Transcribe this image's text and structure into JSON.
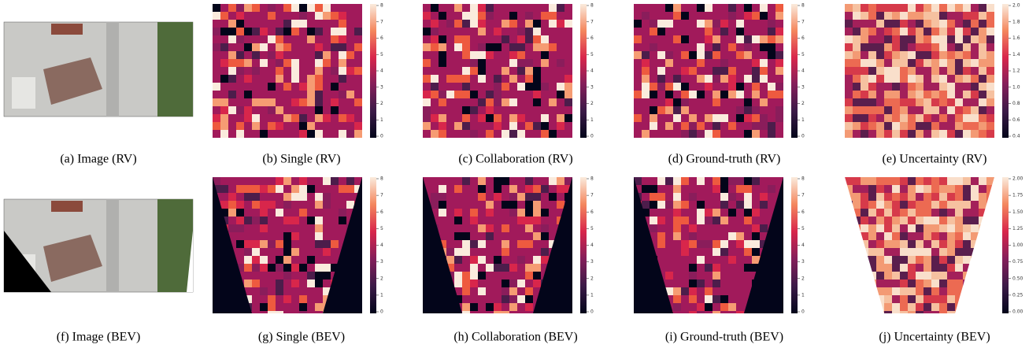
{
  "panels": [
    {
      "caption": "(a) Image (RV)"
    },
    {
      "caption": "(b) Single (RV)",
      "colorbar_ticks": [
        "0",
        "1",
        "2",
        "3",
        "4",
        "5",
        "6",
        "7",
        "8"
      ]
    },
    {
      "caption": "(c) Collaboration (RV)",
      "colorbar_ticks": [
        "0",
        "1",
        "2",
        "3",
        "4",
        "5",
        "6",
        "7",
        "8"
      ]
    },
    {
      "caption": "(d) Ground-truth (RV)",
      "colorbar_ticks": [
        "0",
        "1",
        "2",
        "3",
        "4",
        "5",
        "6",
        "7",
        "8"
      ]
    },
    {
      "caption": "(e) Uncertainty (RV)",
      "colorbar_ticks": [
        "0.4",
        "0.6",
        "0.8",
        "1.0",
        "1.2",
        "1.4",
        "1.6",
        "1.8",
        "2.0"
      ]
    },
    {
      "caption": "(f) Image (BEV)"
    },
    {
      "caption": "(g) Single (BEV)",
      "colorbar_ticks": [
        "0",
        "1",
        "2",
        "3",
        "4",
        "5",
        "6",
        "7",
        "8"
      ]
    },
    {
      "caption": "(h) Collaboration (BEV)",
      "colorbar_ticks": [
        "0",
        "1",
        "2",
        "3",
        "4",
        "5",
        "6",
        "7",
        "8"
      ]
    },
    {
      "caption": "(i) Ground-truth (BEV)",
      "colorbar_ticks": [
        "0",
        "1",
        "2",
        "3",
        "4",
        "5",
        "6",
        "7",
        "8"
      ]
    },
    {
      "caption": "(j) Uncertainty (BEV)",
      "colorbar_ticks": [
        "0.00",
        "0.25",
        "0.50",
        "0.75",
        "1.00",
        "1.25",
        "1.50",
        "1.75",
        "2.00"
      ]
    }
  ]
}
